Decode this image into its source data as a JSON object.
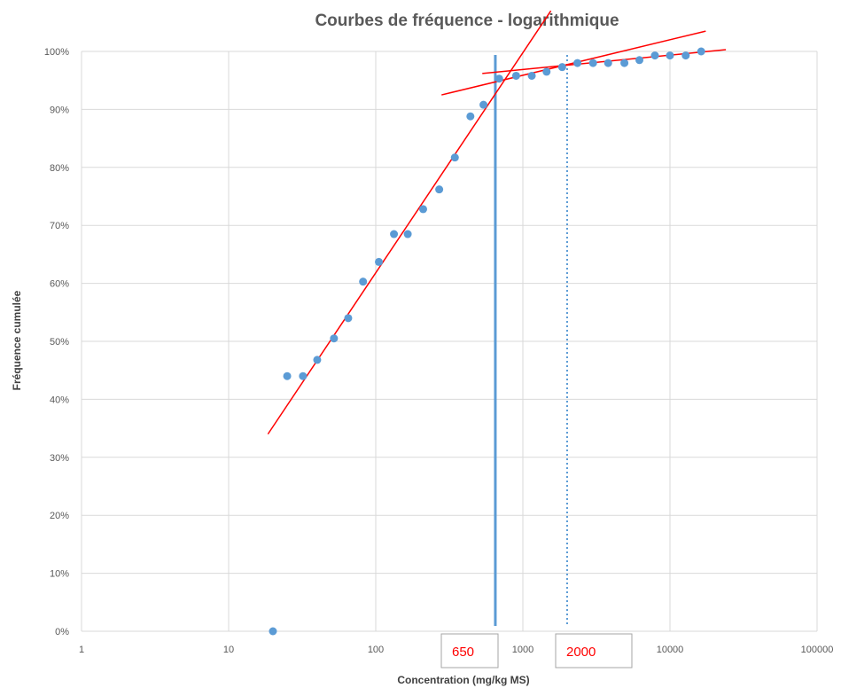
{
  "chart_data": {
    "type": "scatter",
    "title": "Courbes de fréquence - logarithmique",
    "xlabel": "Concentration (mg/kg MS)",
    "ylabel": "Fréquence cumulée",
    "x_scale": "log",
    "xlim": [
      1,
      100000
    ],
    "ylim": [
      0,
      1
    ],
    "x_ticks": [
      1,
      10,
      100,
      1000,
      10000,
      100000
    ],
    "x_tick_labels": [
      "1",
      "10",
      "100",
      "1000",
      "10000",
      "100000"
    ],
    "y_ticks": [
      0,
      0.1,
      0.2,
      0.3,
      0.4,
      0.5,
      0.6,
      0.7,
      0.8,
      0.9,
      1.0
    ],
    "y_tick_labels": [
      "0%",
      "10%",
      "20%",
      "30%",
      "40%",
      "50%",
      "60%",
      "70%",
      "80%",
      "90%",
      "100%"
    ],
    "grid": true,
    "points_color": "#5b9bd5",
    "points": [
      {
        "x": 20,
        "y": 0.0
      },
      {
        "x": 25,
        "y": 0.44
      },
      {
        "x": 32,
        "y": 0.44
      },
      {
        "x": 40,
        "y": 0.468
      },
      {
        "x": 52,
        "y": 0.505
      },
      {
        "x": 65,
        "y": 0.54
      },
      {
        "x": 82,
        "y": 0.603
      },
      {
        "x": 105,
        "y": 0.637
      },
      {
        "x": 133,
        "y": 0.685
      },
      {
        "x": 165,
        "y": 0.685
      },
      {
        "x": 210,
        "y": 0.728
      },
      {
        "x": 270,
        "y": 0.762
      },
      {
        "x": 345,
        "y": 0.817
      },
      {
        "x": 440,
        "y": 0.888
      },
      {
        "x": 540,
        "y": 0.908
      },
      {
        "x": 690,
        "y": 0.953
      },
      {
        "x": 900,
        "y": 0.958
      },
      {
        "x": 1150,
        "y": 0.958
      },
      {
        "x": 1450,
        "y": 0.965
      },
      {
        "x": 1850,
        "y": 0.973
      },
      {
        "x": 2350,
        "y": 0.98
      },
      {
        "x": 3000,
        "y": 0.98
      },
      {
        "x": 3800,
        "y": 0.98
      },
      {
        "x": 4900,
        "y": 0.98
      },
      {
        "x": 6200,
        "y": 0.985
      },
      {
        "x": 7900,
        "y": 0.993
      },
      {
        "x": 10000,
        "y": 0.993
      },
      {
        "x": 12800,
        "y": 0.993
      },
      {
        "x": 16300,
        "y": 1.0
      }
    ],
    "trend_color": "#ff0000",
    "trend_lines": [
      {
        "x1": 18.5,
        "y1": 0.34,
        "x2": 1550,
        "y2": 1.07
      },
      {
        "x1": 280,
        "y1": 0.925,
        "x2": 17500,
        "y2": 1.035
      },
      {
        "x1": 530,
        "y1": 0.962,
        "x2": 24000,
        "y2": 1.003
      }
    ],
    "markers": [
      {
        "x": 650,
        "style": "solid",
        "color": "#5b9bd5",
        "label": "650"
      },
      {
        "x": 2000,
        "style": "dotted",
        "color": "#5b9bd5",
        "label": "2000"
      }
    ]
  }
}
